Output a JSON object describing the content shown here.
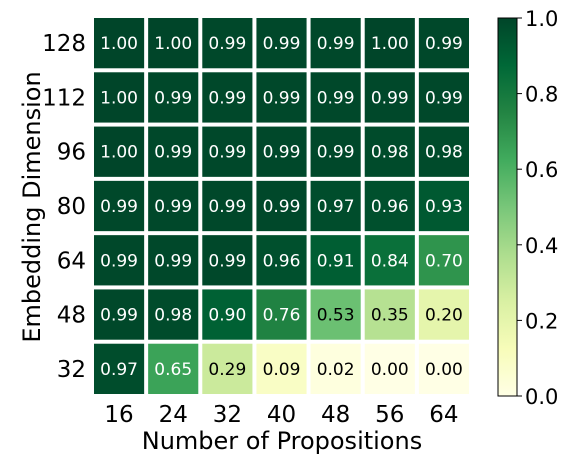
{
  "chart_data": {
    "type": "heatmap",
    "xlabel": "Number of Propositions",
    "ylabel": "Embedding Dimension",
    "x_categories": [
      "16",
      "24",
      "32",
      "40",
      "48",
      "56",
      "64"
    ],
    "y_categories": [
      "128",
      "112",
      "96",
      "80",
      "64",
      "48",
      "32"
    ],
    "values": [
      [
        "1.00",
        "1.00",
        "0.99",
        "0.99",
        "0.99",
        "1.00",
        "0.99"
      ],
      [
        "1.00",
        "0.99",
        "0.99",
        "0.99",
        "0.99",
        "0.99",
        "0.99"
      ],
      [
        "1.00",
        "0.99",
        "0.99",
        "0.99",
        "0.99",
        "0.98",
        "0.98"
      ],
      [
        "0.99",
        "0.99",
        "0.99",
        "0.99",
        "0.97",
        "0.96",
        "0.93"
      ],
      [
        "0.99",
        "0.99",
        "0.99",
        "0.96",
        "0.91",
        "0.84",
        "0.70"
      ],
      [
        "0.99",
        "0.98",
        "0.90",
        "0.76",
        "0.53",
        "0.35",
        "0.20"
      ],
      [
        "0.97",
        "0.65",
        "0.29",
        "0.09",
        "0.02",
        "0.00",
        "0.00"
      ]
    ],
    "colorbar": {
      "range": [
        0.0,
        1.0
      ],
      "ticks": [
        "0.0",
        "0.2",
        "0.4",
        "0.6",
        "0.8",
        "1.0"
      ],
      "colormap": "YlGn",
      "colors": [
        "#ffffe5",
        "#f7fcb9",
        "#d9f0a3",
        "#addd8e",
        "#78c679",
        "#41ab5d",
        "#238443",
        "#006837",
        "#004529"
      ]
    }
  }
}
